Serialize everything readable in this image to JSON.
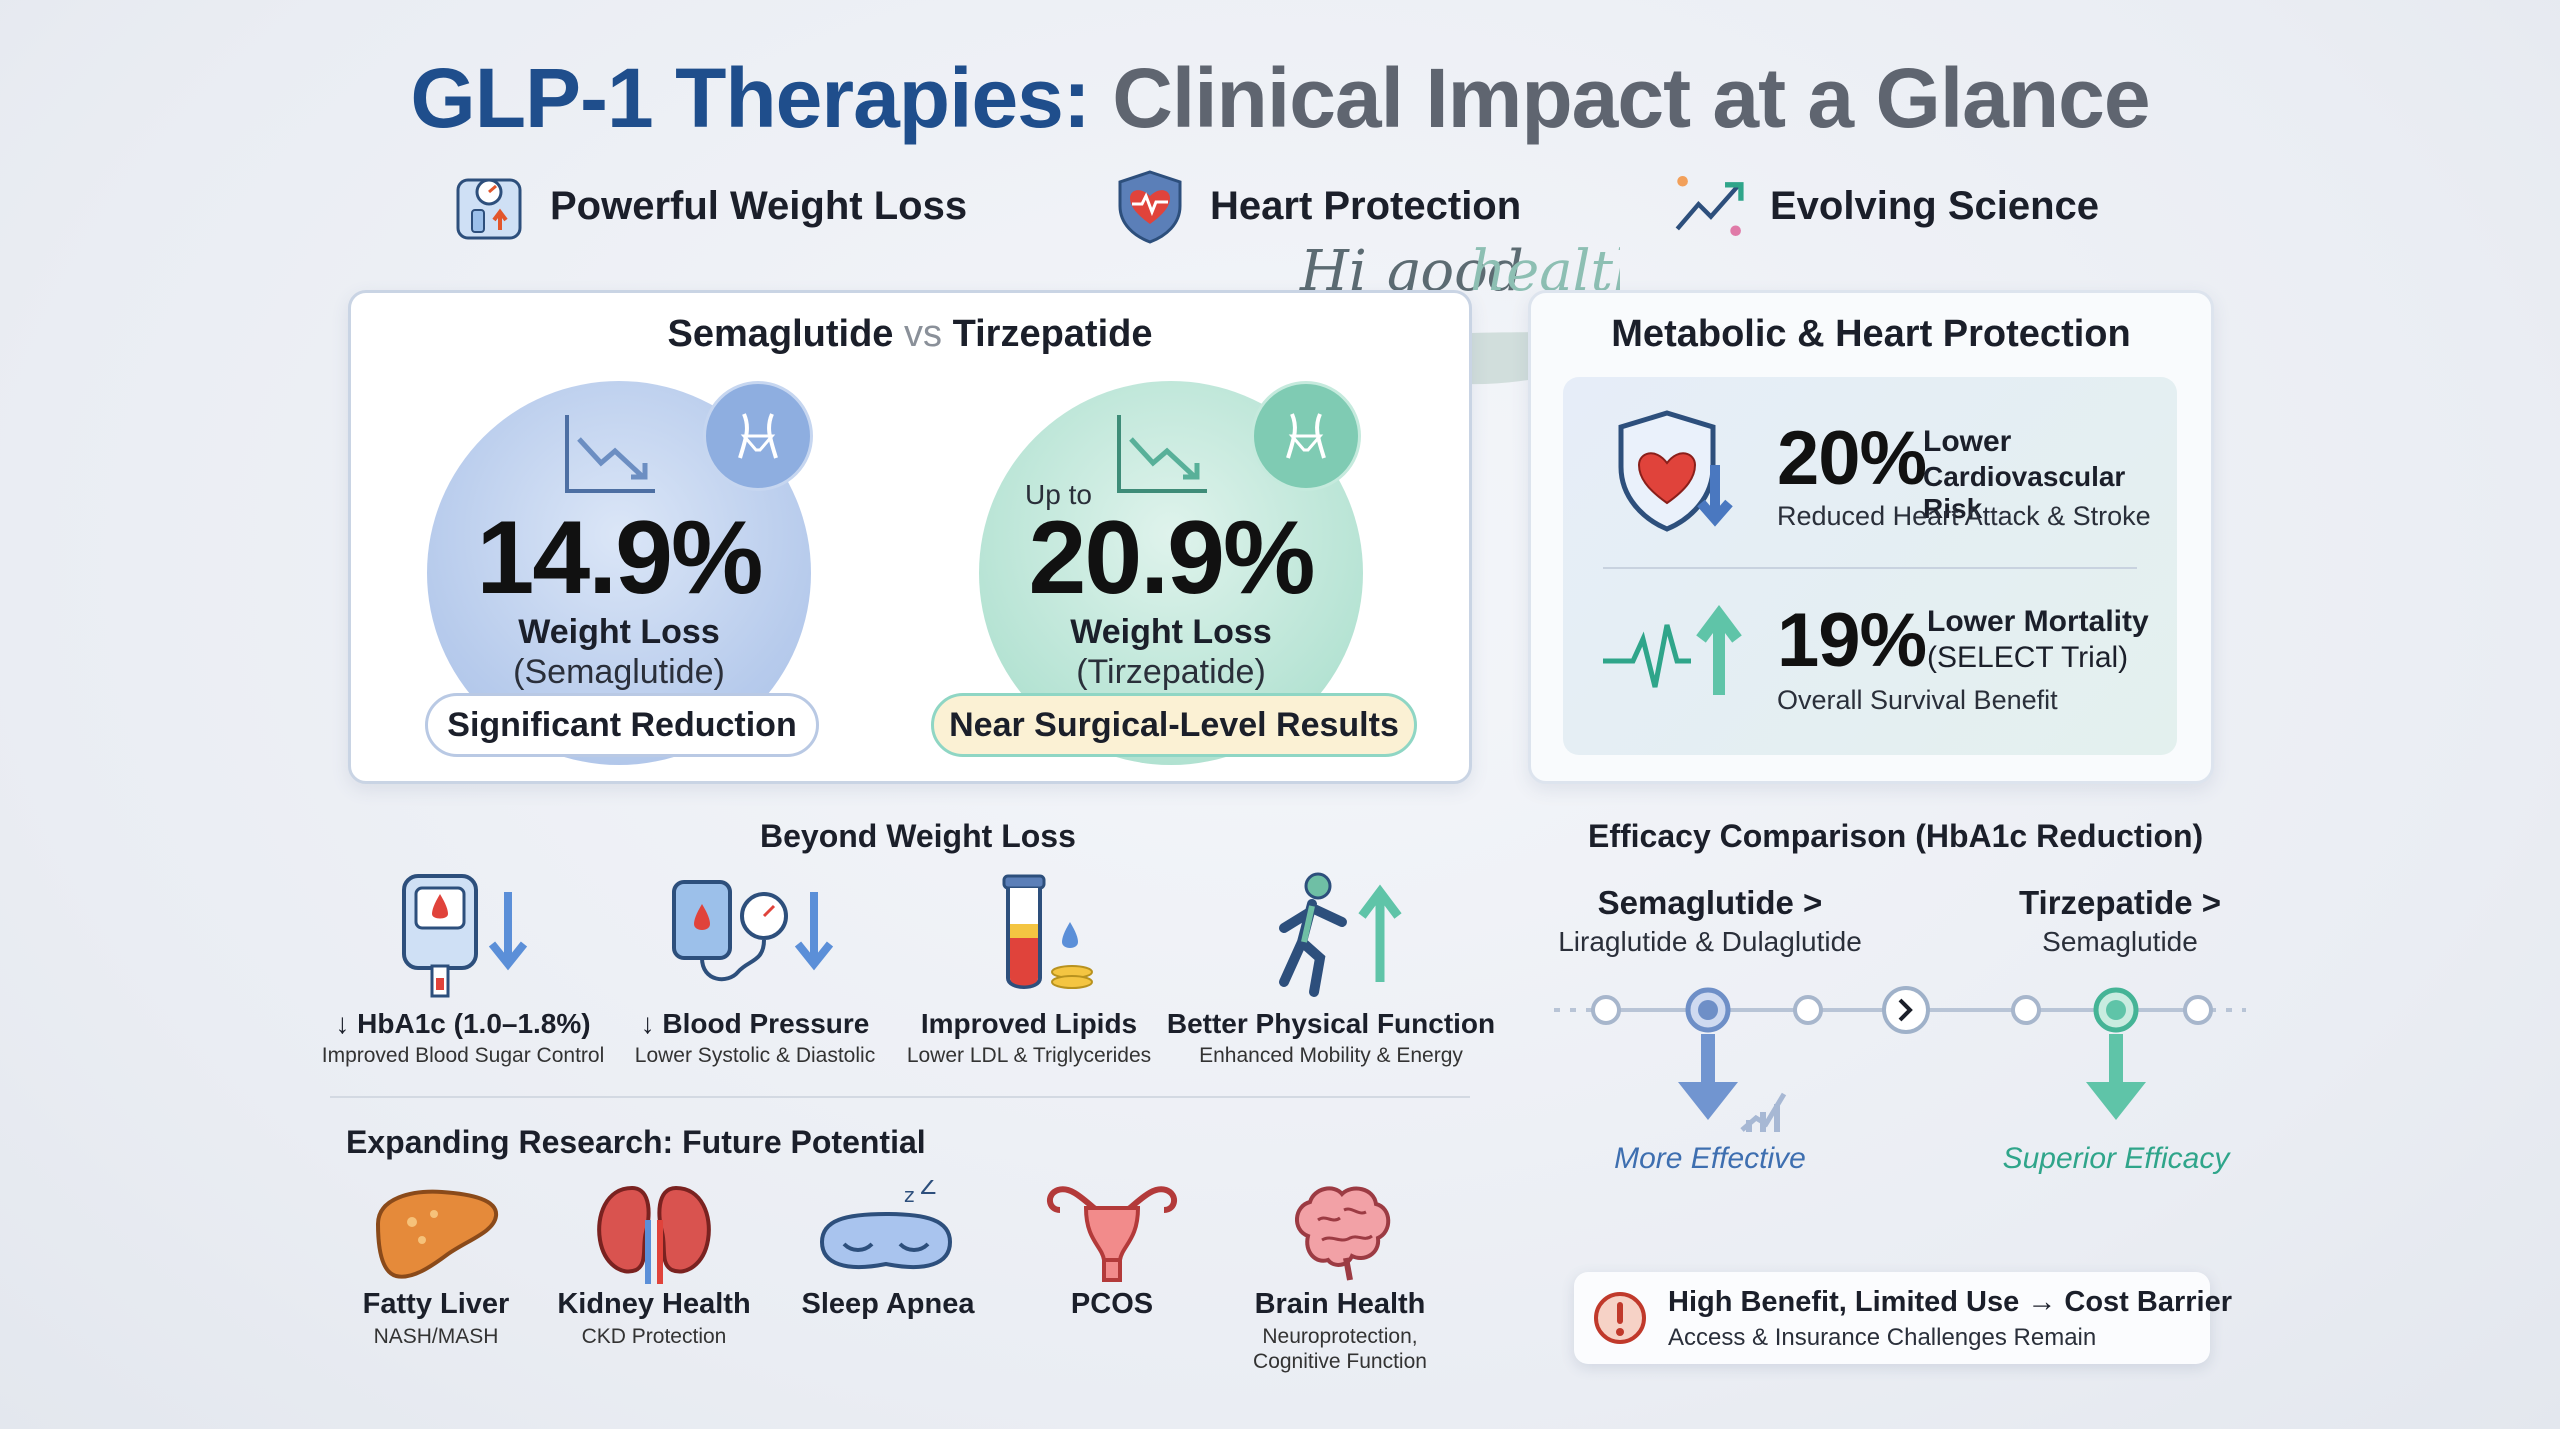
{
  "title": {
    "part1": "GLP-1 Therapies:",
    "part2": "Clinical Impact at a Glance"
  },
  "themes": [
    {
      "label": "Powerful Weight Loss",
      "icon": "scale-icon"
    },
    {
      "label": "Heart Protection",
      "icon": "heart-shield-icon"
    },
    {
      "label": "Evolving Science",
      "icon": "trend-up-icon"
    }
  ],
  "watermark": "Hi good health",
  "comparison": {
    "title_a": "Semaglutide",
    "title_vs": "vs",
    "title_b": "Tirzepatide",
    "sema": {
      "value": "14.9%",
      "label": "Weight Loss",
      "drug": "(Semaglutide)",
      "badge": "Significant Reduction"
    },
    "tirz": {
      "prefix": "Up to",
      "value": "20.9%",
      "label": "Weight Loss",
      "drug": "(Tirzepatide)",
      "badge": "Near Surgical-Level Results"
    }
  },
  "metabolic": {
    "title": "Metabolic & Heart Protection",
    "cv": {
      "value": "20%",
      "line1": "Lower",
      "line2": "Cardiovascular Risk",
      "sub": "Reduced Heart Attack & Stroke"
    },
    "mort": {
      "value": "19%",
      "line1": "Lower Mortality",
      "line2": "(SELECT Trial)",
      "sub": "Overall Survival Benefit"
    }
  },
  "beyond": {
    "title": "Beyond Weight Loss",
    "items": [
      {
        "title": "↓ HbA1c (1.0–1.8%)",
        "sub": "Improved Blood Sugar Control",
        "icon": "glucose-meter-icon"
      },
      {
        "title": "↓ Blood Pressure",
        "sub": "Lower Systolic & Diastolic",
        "icon": "blood-pressure-icon"
      },
      {
        "title": "Improved Lipids",
        "sub": "Lower LDL & Triglycerides",
        "icon": "test-tube-icon"
      },
      {
        "title": "Better Physical Function",
        "sub": "Enhanced Mobility & Energy",
        "icon": "running-person-icon"
      }
    ]
  },
  "research": {
    "title": "Expanding Research: Future Potential",
    "items": [
      {
        "title": "Fatty Liver",
        "sub": "NASH/MASH",
        "icon": "liver-icon"
      },
      {
        "title": "Kidney Health",
        "sub": "CKD Protection",
        "icon": "kidney-icon"
      },
      {
        "title": "Sleep Apnea",
        "sub": "",
        "icon": "sleep-mask-icon"
      },
      {
        "title": "PCOS",
        "sub": "",
        "icon": "uterus-icon"
      },
      {
        "title": "Brain Health",
        "sub": "Neuroprotection,\nCognitive Function",
        "icon": "brain-icon"
      }
    ]
  },
  "efficacy": {
    "title": "Efficacy Comparison (HbA1c Reduction)",
    "left": {
      "title": "Semaglutide >",
      "sub": "Liraglutide & Dulaglutide",
      "caption": "More Effective"
    },
    "right": {
      "title": "Tirzepatide >",
      "sub": "Semaglutide",
      "caption": "Superior Efficacy"
    }
  },
  "barrier": {
    "title": "High Benefit, Limited Use → Cost Barrier",
    "sub": "Access & Insurance Challenges Remain"
  },
  "colors": {
    "title_blue": "#1f4e8c",
    "title_gray": "#5f6570",
    "sema_blue": "#7d9fd6",
    "tirz_green": "#7fd0b8",
    "heart_red": "#e0433b"
  }
}
